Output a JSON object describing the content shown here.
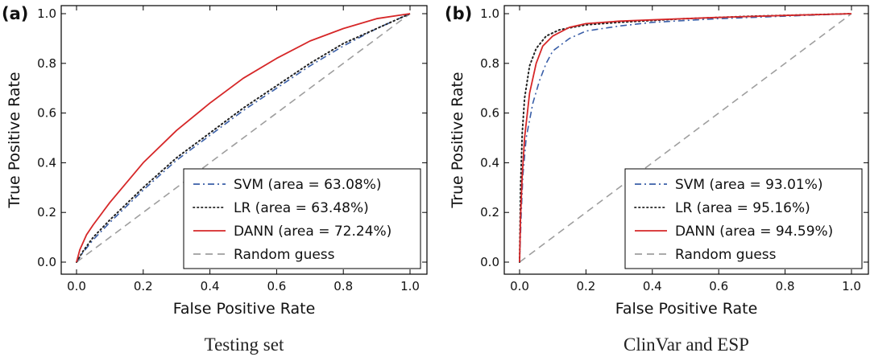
{
  "chart_data": [
    {
      "type": "line",
      "panel_label": "(a)",
      "caption": "Testing set",
      "xlabel": "False Positive Rate",
      "ylabel": "True Positive Rate",
      "xlim": [
        0.0,
        1.0
      ],
      "ylim": [
        0.0,
        1.0
      ],
      "x_ticks": [
        "0.0",
        "0.2",
        "0.4",
        "0.6",
        "0.8",
        "1.0"
      ],
      "y_ticks": [
        "0.0",
        "0.2",
        "0.4",
        "0.6",
        "0.8",
        "1.0"
      ],
      "grid": false,
      "legend_position": "lower-right",
      "series": [
        {
          "name": "SVM (area = 63.08%)",
          "color": "#3a5fa8",
          "style": "dashdot",
          "x": [
            0,
            0.02,
            0.05,
            0.1,
            0.2,
            0.3,
            0.4,
            0.5,
            0.6,
            0.7,
            0.8,
            0.9,
            1.0
          ],
          "y": [
            0,
            0.04,
            0.09,
            0.16,
            0.29,
            0.41,
            0.51,
            0.61,
            0.7,
            0.79,
            0.87,
            0.94,
            1.0
          ]
        },
        {
          "name": "LR (area = 63.48%)",
          "color": "#222222",
          "style": "dotted",
          "x": [
            0,
            0.02,
            0.05,
            0.1,
            0.2,
            0.3,
            0.4,
            0.5,
            0.6,
            0.7,
            0.8,
            0.9,
            1.0
          ],
          "y": [
            0,
            0.045,
            0.1,
            0.17,
            0.3,
            0.42,
            0.52,
            0.62,
            0.71,
            0.8,
            0.88,
            0.94,
            1.0
          ]
        },
        {
          "name": "DANN (area = 72.24%)",
          "color": "#d62728",
          "style": "solid",
          "x": [
            0,
            0.01,
            0.03,
            0.05,
            0.1,
            0.2,
            0.3,
            0.4,
            0.5,
            0.6,
            0.7,
            0.8,
            0.9,
            1.0
          ],
          "y": [
            0,
            0.05,
            0.11,
            0.15,
            0.24,
            0.4,
            0.53,
            0.64,
            0.74,
            0.82,
            0.89,
            0.94,
            0.98,
            1.0
          ]
        },
        {
          "name": "Random guess",
          "color": "#9e9e9e",
          "style": "dashed",
          "x": [
            0,
            1
          ],
          "y": [
            0,
            1
          ]
        }
      ]
    },
    {
      "type": "line",
      "panel_label": "(b)",
      "caption": "ClinVar and ESP",
      "xlabel": "False Positive Rate",
      "ylabel": "True Positive Rate",
      "xlim": [
        0.0,
        1.0
      ],
      "ylim": [
        0.0,
        1.0
      ],
      "x_ticks": [
        "0.0",
        "0.2",
        "0.4",
        "0.6",
        "0.8",
        "1.0"
      ],
      "y_ticks": [
        "0.0",
        "0.2",
        "0.4",
        "0.6",
        "0.8",
        "1.0"
      ],
      "grid": false,
      "legend_position": "lower-right",
      "series": [
        {
          "name": "SVM (area = 93.01%)",
          "color": "#3a5fa8",
          "style": "dashdot",
          "x": [
            0,
            0.005,
            0.01,
            0.02,
            0.04,
            0.06,
            0.08,
            0.1,
            0.15,
            0.2,
            0.3,
            0.4,
            0.6,
            0.8,
            1.0
          ],
          "y": [
            0,
            0.2,
            0.35,
            0.5,
            0.64,
            0.73,
            0.8,
            0.85,
            0.9,
            0.93,
            0.95,
            0.965,
            0.98,
            0.99,
            1.0
          ]
        },
        {
          "name": "LR (area = 95.16%)",
          "color": "#222222",
          "style": "dotted",
          "x": [
            0,
            0.003,
            0.008,
            0.015,
            0.03,
            0.05,
            0.08,
            0.12,
            0.2,
            0.3,
            0.5,
            0.7,
            1.0
          ],
          "y": [
            0,
            0.3,
            0.52,
            0.66,
            0.79,
            0.86,
            0.91,
            0.935,
            0.955,
            0.965,
            0.98,
            0.99,
            1.0
          ]
        },
        {
          "name": "DANN (area = 94.59%)",
          "color": "#d62728",
          "style": "solid",
          "x": [
            0,
            0.003,
            0.008,
            0.015,
            0.03,
            0.05,
            0.07,
            0.1,
            0.15,
            0.2,
            0.3,
            0.4,
            0.6,
            0.8,
            1.0
          ],
          "y": [
            0,
            0.18,
            0.35,
            0.5,
            0.68,
            0.8,
            0.87,
            0.91,
            0.945,
            0.96,
            0.97,
            0.975,
            0.985,
            0.993,
            1.0
          ]
        },
        {
          "name": "Random guess",
          "color": "#9e9e9e",
          "style": "dashed",
          "x": [
            0,
            1
          ],
          "y": [
            0,
            1
          ]
        }
      ]
    }
  ]
}
